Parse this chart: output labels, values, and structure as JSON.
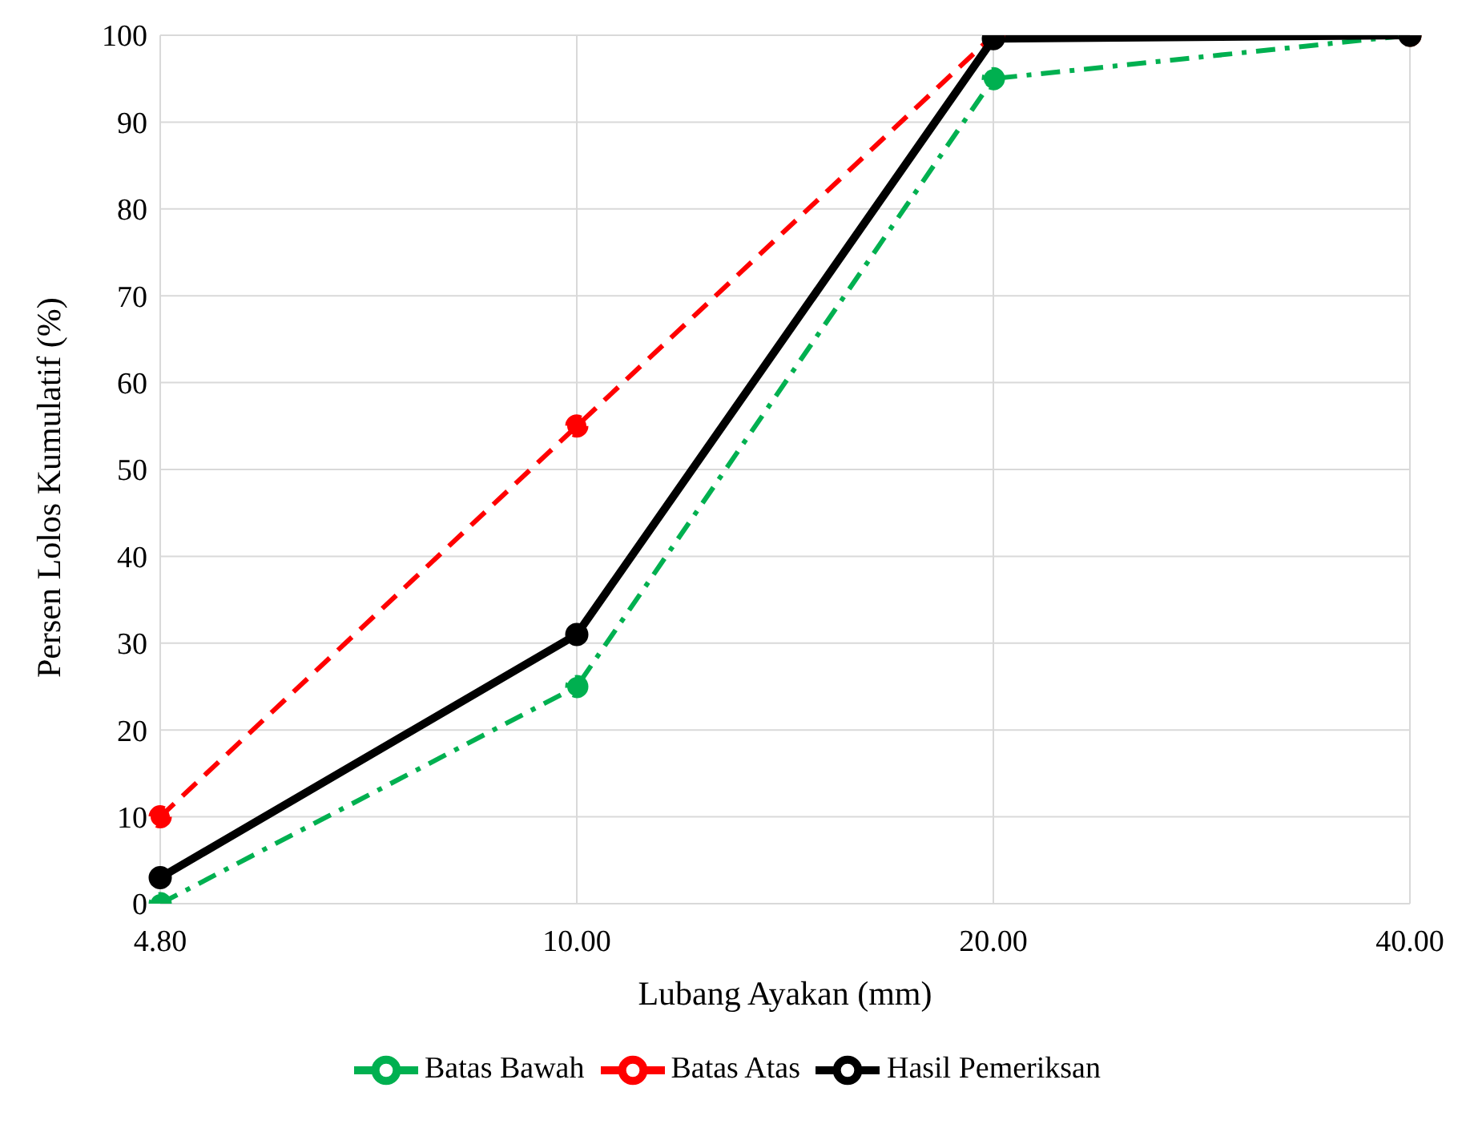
{
  "chart_data": {
    "type": "line",
    "xlabel": "Lubang Ayakan (mm)",
    "ylabel": "Persen Lolos Kumulatif (%)",
    "categories": [
      "4.80",
      "10.00",
      "20.00",
      "40.00"
    ],
    "series": [
      {
        "name": "Batas Bawah",
        "color": "#00b050",
        "line_style": "dashdot",
        "marker": "circle",
        "values": [
          0,
          25,
          95,
          100
        ]
      },
      {
        "name": "Batas Atas",
        "color": "#ff0000",
        "line_style": "dashed",
        "marker": "circle",
        "values": [
          10,
          55,
          100,
          100
        ]
      },
      {
        "name": "Hasil Pemeriksan",
        "color": "#000000",
        "line_style": "solid",
        "marker": "circle",
        "values": [
          3,
          31,
          99.6,
          100
        ]
      }
    ],
    "ylim": [
      0,
      100
    ],
    "yticks": [
      0,
      10,
      20,
      30,
      40,
      50,
      60,
      70,
      80,
      90,
      100
    ],
    "grid": true,
    "legend": "bottom"
  }
}
